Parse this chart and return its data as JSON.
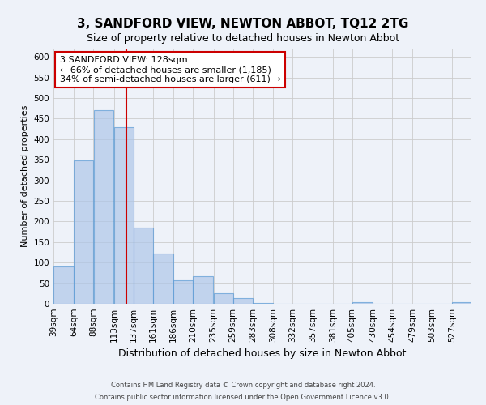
{
  "title": "3, SANDFORD VIEW, NEWTON ABBOT, TQ12 2TG",
  "subtitle": "Size of property relative to detached houses in Newton Abbot",
  "xlabel": "Distribution of detached houses by size in Newton Abbot",
  "ylabel": "Number of detached properties",
  "footer_line1": "Contains HM Land Registry data © Crown copyright and database right 2024.",
  "footer_line2": "Contains public sector information licensed under the Open Government Licence v3.0.",
  "bin_labels": [
    "39sqm",
    "64sqm",
    "88sqm",
    "113sqm",
    "137sqm",
    "161sqm",
    "186sqm",
    "210sqm",
    "235sqm",
    "259sqm",
    "283sqm",
    "308sqm",
    "332sqm",
    "357sqm",
    "381sqm",
    "405sqm",
    "430sqm",
    "454sqm",
    "479sqm",
    "503sqm",
    "527sqm"
  ],
  "bin_edges": [
    39,
    64,
    88,
    113,
    137,
    161,
    186,
    210,
    235,
    259,
    283,
    308,
    332,
    357,
    381,
    405,
    430,
    454,
    479,
    503,
    527,
    551
  ],
  "bar_heights": [
    90,
    348,
    470,
    430,
    185,
    123,
    57,
    67,
    25,
    13,
    2,
    0,
    0,
    0,
    0,
    4,
    0,
    0,
    0,
    0,
    4
  ],
  "bar_color": "#aec6e8",
  "bar_edgecolor": "#5b9bd5",
  "bar_alpha": 0.7,
  "vline_x": 128,
  "vline_color": "#cc0000",
  "annotation_line1": "3 SANDFORD VIEW: 128sqm",
  "annotation_line2": "← 66% of detached houses are smaller (1,185)",
  "annotation_line3": "34% of semi-detached houses are larger (611) →",
  "annotation_box_facecolor": "white",
  "annotation_box_edgecolor": "#cc0000",
  "ylim": [
    0,
    620
  ],
  "yticks": [
    0,
    50,
    100,
    150,
    200,
    250,
    300,
    350,
    400,
    450,
    500,
    550,
    600
  ],
  "grid_color": "#cccccc",
  "bg_color": "#eef2f9",
  "title_fontsize": 11,
  "subtitle_fontsize": 9,
  "xlabel_fontsize": 9,
  "ylabel_fontsize": 8,
  "tick_fontsize": 7.5
}
